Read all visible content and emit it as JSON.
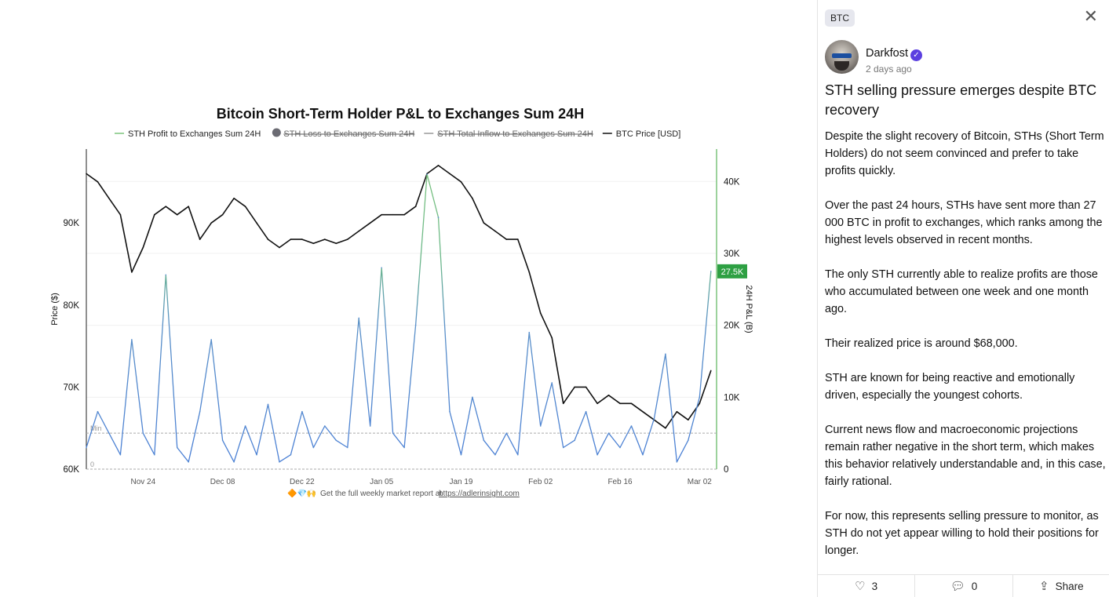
{
  "chart_data": {
    "type": "line",
    "title": "Bitcoin Short-Term Holder P&L to Exchanges Sum 24H",
    "legend": [
      {
        "label": "STH Profit to Exchanges Sum 24H",
        "color": "#7cc47c",
        "hidden": false
      },
      {
        "label": "STH Loss to Exchanges Sum 24H",
        "color": "#6b6b73",
        "hidden": true
      },
      {
        "label": "STH Total Inflow to Exchanges Sum 24H",
        "color": "#999999",
        "hidden": true
      },
      {
        "label": "BTC Price [USD]",
        "color": "#111111",
        "hidden": false
      }
    ],
    "legend_placement": "top-center",
    "x_unit": "days since Nov 14",
    "x_range": [
      0,
      111
    ],
    "x_step_days": 2,
    "x_ticks": [
      {
        "day": 10,
        "label": "Nov 24"
      },
      {
        "day": 24,
        "label": "Dec 08"
      },
      {
        "day": 38,
        "label": "Dec 22"
      },
      {
        "day": 52,
        "label": "Jan 05"
      },
      {
        "day": 66,
        "label": "Jan 19"
      },
      {
        "day": 80,
        "label": "Feb 02"
      },
      {
        "day": 94,
        "label": "Feb 16"
      },
      {
        "day": 108,
        "label": "Mar 02"
      }
    ],
    "ylabel_left": "Price ($)",
    "ylim_left": [
      60,
      99
    ],
    "yticks_left": [
      {
        "v": 60,
        "label": "60K"
      },
      {
        "v": 70,
        "label": "70K"
      },
      {
        "v": 80,
        "label": "80K"
      },
      {
        "v": 90,
        "label": "90K"
      }
    ],
    "ylabel_right": "24H P&L (B)",
    "ylim_right": [
      0,
      44.5
    ],
    "yticks_right": [
      {
        "v": 0,
        "label": "0"
      },
      {
        "v": 10,
        "label": "10K"
      },
      {
        "v": 20,
        "label": "20K"
      },
      {
        "v": 30,
        "label": "30K"
      },
      {
        "v": 40,
        "label": "40K"
      }
    ],
    "reference_lines": [
      {
        "label": "Min",
        "right_value": 5
      },
      {
        "label": "0",
        "right_value": 0
      }
    ],
    "current_value_badge": {
      "label": "27.5K",
      "value": 27.5,
      "color": "#2ea043"
    },
    "series": [
      {
        "name": "BTC Price [USD]",
        "unit": "K USD",
        "axis": "left",
        "values": [
          96,
          95,
          93,
          91,
          84,
          87,
          91,
          92,
          91,
          92,
          88,
          90,
          91,
          93,
          92,
          90,
          88,
          87,
          88,
          88,
          87.5,
          88,
          87.5,
          88,
          89,
          90,
          91,
          91,
          91,
          92,
          96,
          97,
          96,
          95,
          93,
          90,
          89,
          88,
          88,
          84,
          79,
          76,
          68,
          70,
          70,
          68,
          69,
          68,
          68,
          67,
          66,
          65,
          67,
          66,
          68,
          72
        ]
      },
      {
        "name": "STH Profit to Exchanges Sum 24H",
        "unit": "K BTC",
        "axis": "right",
        "values": [
          3,
          8,
          5,
          2,
          18,
          5,
          2,
          27,
          3,
          1,
          8,
          18,
          4,
          1,
          6,
          2,
          9,
          1,
          2,
          8,
          3,
          6,
          4,
          3,
          21,
          6,
          28,
          5,
          3,
          20,
          41,
          35,
          8,
          2,
          10,
          4,
          2,
          5,
          2,
          19,
          6,
          12,
          3,
          4,
          8,
          2,
          5,
          3,
          6,
          2,
          7,
          16,
          1,
          4,
          10,
          27.5
        ]
      }
    ],
    "footer_note": "Get the full weekly market report at",
    "footer_link": "https://adlerinsight.com"
  },
  "panel": {
    "tag": "BTC",
    "close_icon": "close-icon",
    "author": "Darkfost",
    "time": "2 days ago",
    "title": "STH selling pressure emerges despite BTC recovery",
    "paragraphs": [
      "Despite the slight recovery of Bitcoin, STHs (Short Term Holders) do not seem convinced and prefer to take profits quickly.",
      "Over the past 24 hours, STHs have sent more than 27 000 BTC in profit to exchanges, which ranks among the highest levels observed in recent months.",
      "The only STH currently able to realize profits are those who accumulated between one week and one month ago.",
      "Their realized price is around $68,000.",
      "STH are known for being reactive and emotionally driven, especially the youngest cohorts.",
      "Current news flow and macroeconomic projections remain rather negative in the short term, which makes this behavior relatively understandable and, in this case, fairly rational.",
      "For now, this represents selling pressure to monitor, as STH do not yet appear willing to hold their positions for longer."
    ],
    "likes": "3",
    "comments": "0",
    "share": "Share"
  }
}
